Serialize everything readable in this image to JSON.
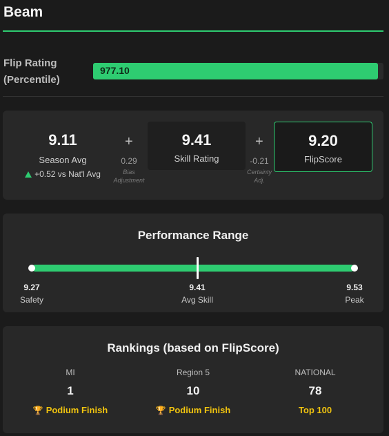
{
  "app": {
    "title": "Beam"
  },
  "flip": {
    "label_line1": "Flip Rating",
    "label_line2": "(Percentile)",
    "value": "977.10",
    "fill_fraction": 1.0,
    "color": "#2ecc71"
  },
  "score": {
    "season": {
      "value": "9.11",
      "label": "Season Avg",
      "delta": "+0.52 vs Nat'l Avg"
    },
    "plus1": "+",
    "bias": {
      "value": "0.29",
      "label_line1": "Bias",
      "label_line2": "Adjustment"
    },
    "skill": {
      "value": "9.41",
      "label": "Skill Rating"
    },
    "plus2": "+",
    "certainty": {
      "value": "-0.21",
      "label_line1": "Certainty",
      "label_line2": "Adj."
    },
    "flipscore": {
      "value": "9.20",
      "label": "FlipScore"
    }
  },
  "range": {
    "title": "Performance Range",
    "safety": {
      "value": "9.27",
      "label": "Safety"
    },
    "avg": {
      "value": "9.41",
      "label": "Avg Skill"
    },
    "peak": {
      "value": "9.53",
      "label": "Peak"
    }
  },
  "rankings": {
    "title": "Rankings (based on FlipScore)",
    "columns": [
      {
        "header": "MI",
        "rank": "1",
        "badge": "Podium Finish",
        "icon": "trophy-icon"
      },
      {
        "header": "Region 5",
        "rank": "10",
        "badge": "Podium Finish",
        "icon": "trophy-icon"
      },
      {
        "header": "NATIONAL",
        "rank": "78",
        "badge": "Top 100",
        "icon": ""
      }
    ],
    "badge_color": "#f1c40f"
  }
}
